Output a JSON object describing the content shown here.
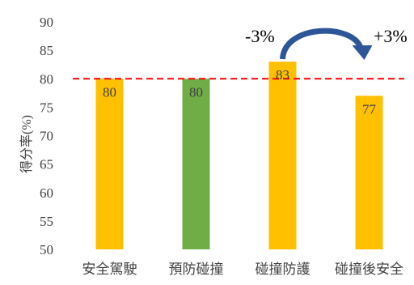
{
  "chart_data": {
    "type": "bar",
    "categories": [
      "安全駕駛",
      "預防碰撞",
      "碰撞防護",
      "碰撞後安全"
    ],
    "values": [
      80,
      80,
      83,
      77
    ],
    "data_labels": [
      "80",
      "80",
      "83",
      "77"
    ],
    "bar_colors": [
      "#FFC000",
      "#70AD47",
      "#FFC000",
      "#FFC000"
    ],
    "ylabel": "得分率(%)",
    "xlabel": "",
    "title": "",
    "ylim": [
      50,
      90
    ],
    "yticks": [
      50,
      55,
      60,
      65,
      70,
      75,
      80,
      85,
      90
    ],
    "grid": false,
    "legend": "none",
    "reference_line": {
      "value": 80,
      "color": "#FF0000",
      "style": "dashed"
    },
    "annotations": {
      "left_text": "-3%",
      "right_text": "+3%",
      "arrow": {
        "from_category": "碰撞防護",
        "to_category": "碰撞後安全",
        "color": "#2E5597"
      }
    }
  }
}
